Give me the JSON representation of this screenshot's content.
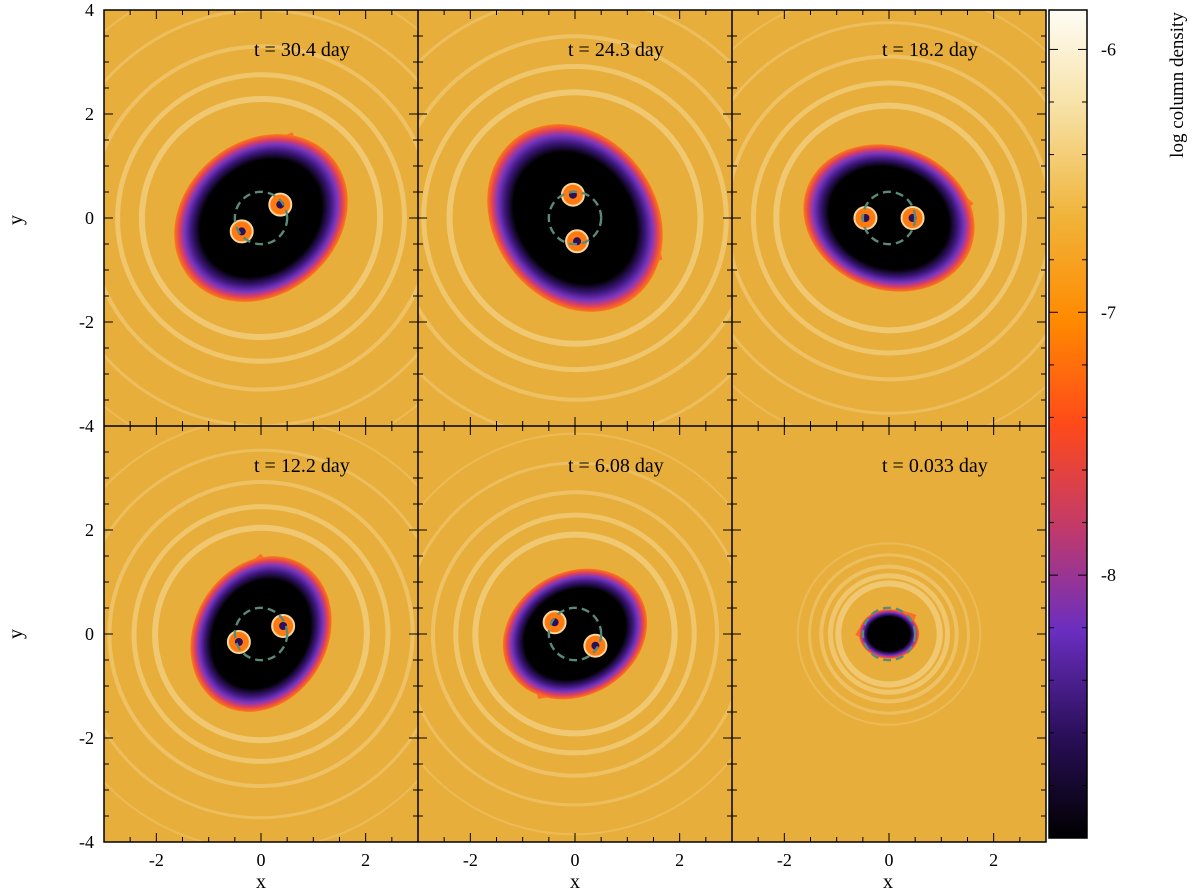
{
  "chart_data": {
    "type": "heatmap",
    "title": "",
    "xlabel": "x",
    "ylabel": "y",
    "xlim": [
      -3,
      3
    ],
    "ylim": [
      -4,
      4
    ],
    "x_ticks": [
      "-2",
      "0",
      "2"
    ],
    "y_ticks": [
      "4",
      "2",
      "0",
      "-2",
      "-4"
    ],
    "colorbar": {
      "label": "log column density",
      "ticks": [
        "-6",
        "-7",
        "-8"
      ],
      "range": [
        -9.0,
        -5.85
      ],
      "colors": [
        "#000000",
        "#2a0f5a",
        "#6a2ec0",
        "#c23a6a",
        "#ff4a1a",
        "#ff8a00",
        "#f0b43a",
        "#f6dfa0",
        "#fffdf5"
      ]
    },
    "panels": [
      {
        "label": "t = 30.4 day",
        "time_days": 30.4,
        "hole_radius": 1.55,
        "orientation_deg": -40,
        "binary_sep": 0.45,
        "binary_angle_deg": 35
      },
      {
        "label": "t = 24.3 day",
        "time_days": 24.3,
        "hole_radius": 1.65,
        "orientation_deg": 55,
        "binary_sep": 0.45,
        "binary_angle_deg": 95
      },
      {
        "label": "t = 18.2 day",
        "time_days": 18.2,
        "hole_radius": 1.45,
        "orientation_deg": 20,
        "binary_sep": 0.45,
        "binary_angle_deg": 0
      },
      {
        "label": "t = 12.2 day",
        "time_days": 12.2,
        "hole_radius": 1.35,
        "orientation_deg": -60,
        "binary_sep": 0.45,
        "binary_angle_deg": 20
      },
      {
        "label": "t = 6.08 day",
        "time_days": 6.08,
        "hole_radius": 1.25,
        "orientation_deg": 150,
        "binary_sep": 0.45,
        "binary_angle_deg": -30
      },
      {
        "label": "t = 0.033 day",
        "time_days": 0.033,
        "hole_radius": 0.5,
        "orientation_deg": 0,
        "binary_sep": 0.0,
        "binary_angle_deg": 0
      }
    ],
    "colors": {
      "background": "#e8ae3c",
      "ring_light": "#f7df9e",
      "dashed_circle": "#5a8a78"
    }
  }
}
